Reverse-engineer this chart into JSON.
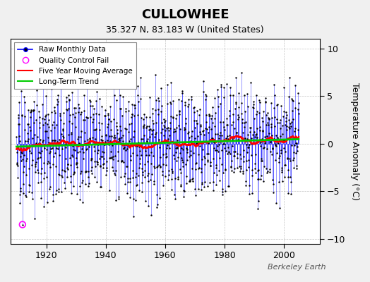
{
  "title": "CULLOWHEE",
  "subtitle": "35.327 N, 83.183 W (United States)",
  "ylabel": "Temperature Anomaly (°C)",
  "watermark": "Berkeley Earth",
  "xlim": [
    1908,
    2012
  ],
  "ylim": [
    -10.5,
    11
  ],
  "yticks": [
    -10,
    -5,
    0,
    5,
    10
  ],
  "xticks": [
    1920,
    1940,
    1960,
    1980,
    2000
  ],
  "background_color": "#f0f0f0",
  "plot_bg_color": "#ffffff",
  "raw_line_color": "#0000ff",
  "raw_marker_color": "#000000",
  "ma_color": "#ff0000",
  "trend_color": "#00cc00",
  "qc_fail_color": "#ff00ff",
  "seed": 42,
  "n_months": 1140,
  "start_year": 1910,
  "trend_slope": 0.003,
  "ma_window": 60
}
